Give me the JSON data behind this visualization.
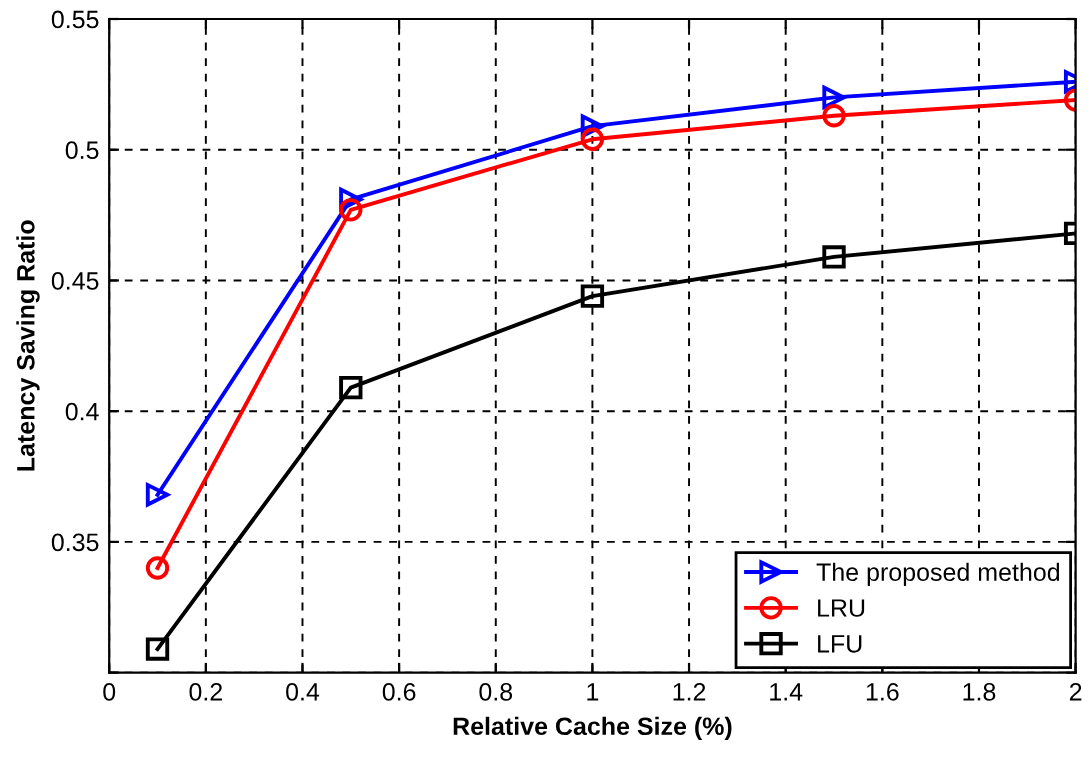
{
  "chart_data": {
    "type": "line",
    "xlabel": "Relative Cache Size (%)",
    "ylabel": "Latency Saving Ratio",
    "x": [
      0.1,
      0.5,
      1,
      1.5,
      2
    ],
    "series": [
      {
        "name": "The proposed method",
        "color": "#0000ff",
        "marker": "triangle",
        "values": [
          0.368,
          0.481,
          0.509,
          0.52,
          0.526
        ]
      },
      {
        "name": "LRU",
        "color": "#ff0000",
        "marker": "circle",
        "values": [
          0.34,
          0.477,
          0.504,
          0.513,
          0.519
        ]
      },
      {
        "name": "LFU",
        "color": "#000000",
        "marker": "square",
        "values": [
          0.309,
          0.409,
          0.444,
          0.459,
          0.468
        ]
      }
    ],
    "xlim": [
      0,
      2
    ],
    "xticks": [
      0,
      0.2,
      0.4,
      0.6,
      0.8,
      1,
      1.2,
      1.4,
      1.6,
      1.8,
      2
    ],
    "ylim": [
      0.3,
      0.55
    ],
    "yticks": [
      {
        "value": 0.3,
        "label": null
      },
      0.35,
      0.4,
      0.45,
      0.5,
      0.55
    ],
    "grid": true,
    "legend": "bottom right",
    "line_style": "solid"
  }
}
